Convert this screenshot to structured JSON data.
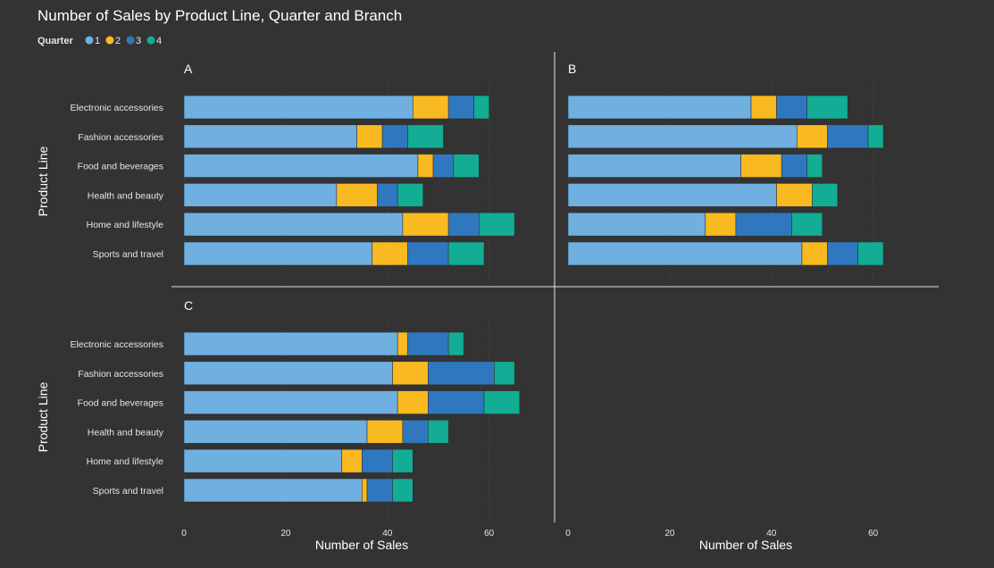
{
  "chart_data": {
    "type": "bar",
    "orientation": "horizontal",
    "stacked": true,
    "title": "Number of Sales by Product Line, Quarter and Branch",
    "legend": {
      "title": "Quarter",
      "position": "top-left",
      "entries": [
        {
          "label": "1",
          "color": "#6fb0e1"
        },
        {
          "label": "2",
          "color": "#f9b920"
        },
        {
          "label": "3",
          "color": "#2f78bf"
        },
        {
          "label": "4",
          "color": "#12ad94"
        }
      ]
    },
    "ylabel": "Product Line",
    "xlabel": "Number of Sales",
    "xlim": [
      0,
      72
    ],
    "xticks": [
      0,
      20,
      40,
      60
    ],
    "grid": true,
    "categories": [
      "Electronic accessories",
      "Fashion accessories",
      "Food and beverages",
      "Health and beauty",
      "Home and lifestyle",
      "Sports and travel"
    ],
    "panels": [
      {
        "label": "A",
        "series": [
          {
            "name": "1",
            "values": [
              45,
              34,
              46,
              30,
              43,
              37
            ]
          },
          {
            "name": "2",
            "values": [
              7,
              5,
              3,
              8,
              9,
              7
            ]
          },
          {
            "name": "3",
            "values": [
              5,
              5,
              4,
              4,
              6,
              8
            ]
          },
          {
            "name": "4",
            "values": [
              3,
              7,
              5,
              5,
              7,
              7
            ]
          }
        ]
      },
      {
        "label": "B",
        "series": [
          {
            "name": "1",
            "values": [
              36,
              45,
              34,
              41,
              27,
              46
            ]
          },
          {
            "name": "2",
            "values": [
              5,
              6,
              8,
              7,
              6,
              5
            ]
          },
          {
            "name": "3",
            "values": [
              6,
              8,
              5,
              0,
              11,
              6
            ]
          },
          {
            "name": "4",
            "values": [
              8,
              3,
              3,
              5,
              6,
              5
            ]
          }
        ]
      },
      {
        "label": "C",
        "series": [
          {
            "name": "1",
            "values": [
              42,
              41,
              42,
              36,
              31,
              35
            ]
          },
          {
            "name": "2",
            "values": [
              2,
              7,
              6,
              7,
              4,
              1
            ]
          },
          {
            "name": "3",
            "values": [
              8,
              13,
              11,
              5,
              6,
              5
            ]
          },
          {
            "name": "4",
            "values": [
              3,
              4,
              7,
              4,
              4,
              4
            ]
          }
        ]
      }
    ]
  }
}
